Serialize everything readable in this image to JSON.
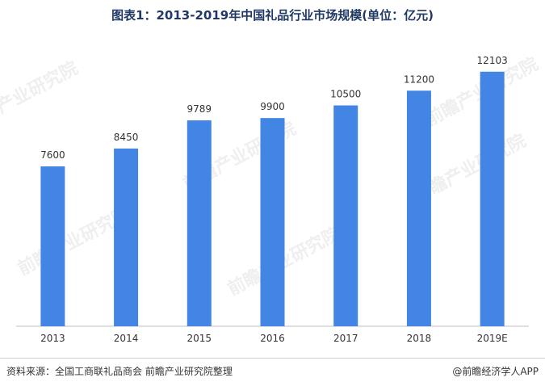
{
  "chart_data": {
    "type": "bar",
    "title": "图表1：2013-2019年中国礼品行业市场规模(单位：亿元)",
    "categories": [
      "2013",
      "2014",
      "2015",
      "2016",
      "2017",
      "2018",
      "2019E"
    ],
    "values": [
      7600,
      8450,
      9789,
      9900,
      10500,
      11200,
      12103
    ],
    "ylim": [
      0,
      13400
    ],
    "xlabel": "",
    "ylabel": "",
    "bar_color": "#4285e4",
    "grid": false,
    "legend": "none"
  },
  "footer": {
    "source": "资料来源：全国工商联礼品商会 前瞻产业研究院整理",
    "brand": "@前瞻经济学人APP"
  },
  "watermark": "前瞻产业研究院"
}
